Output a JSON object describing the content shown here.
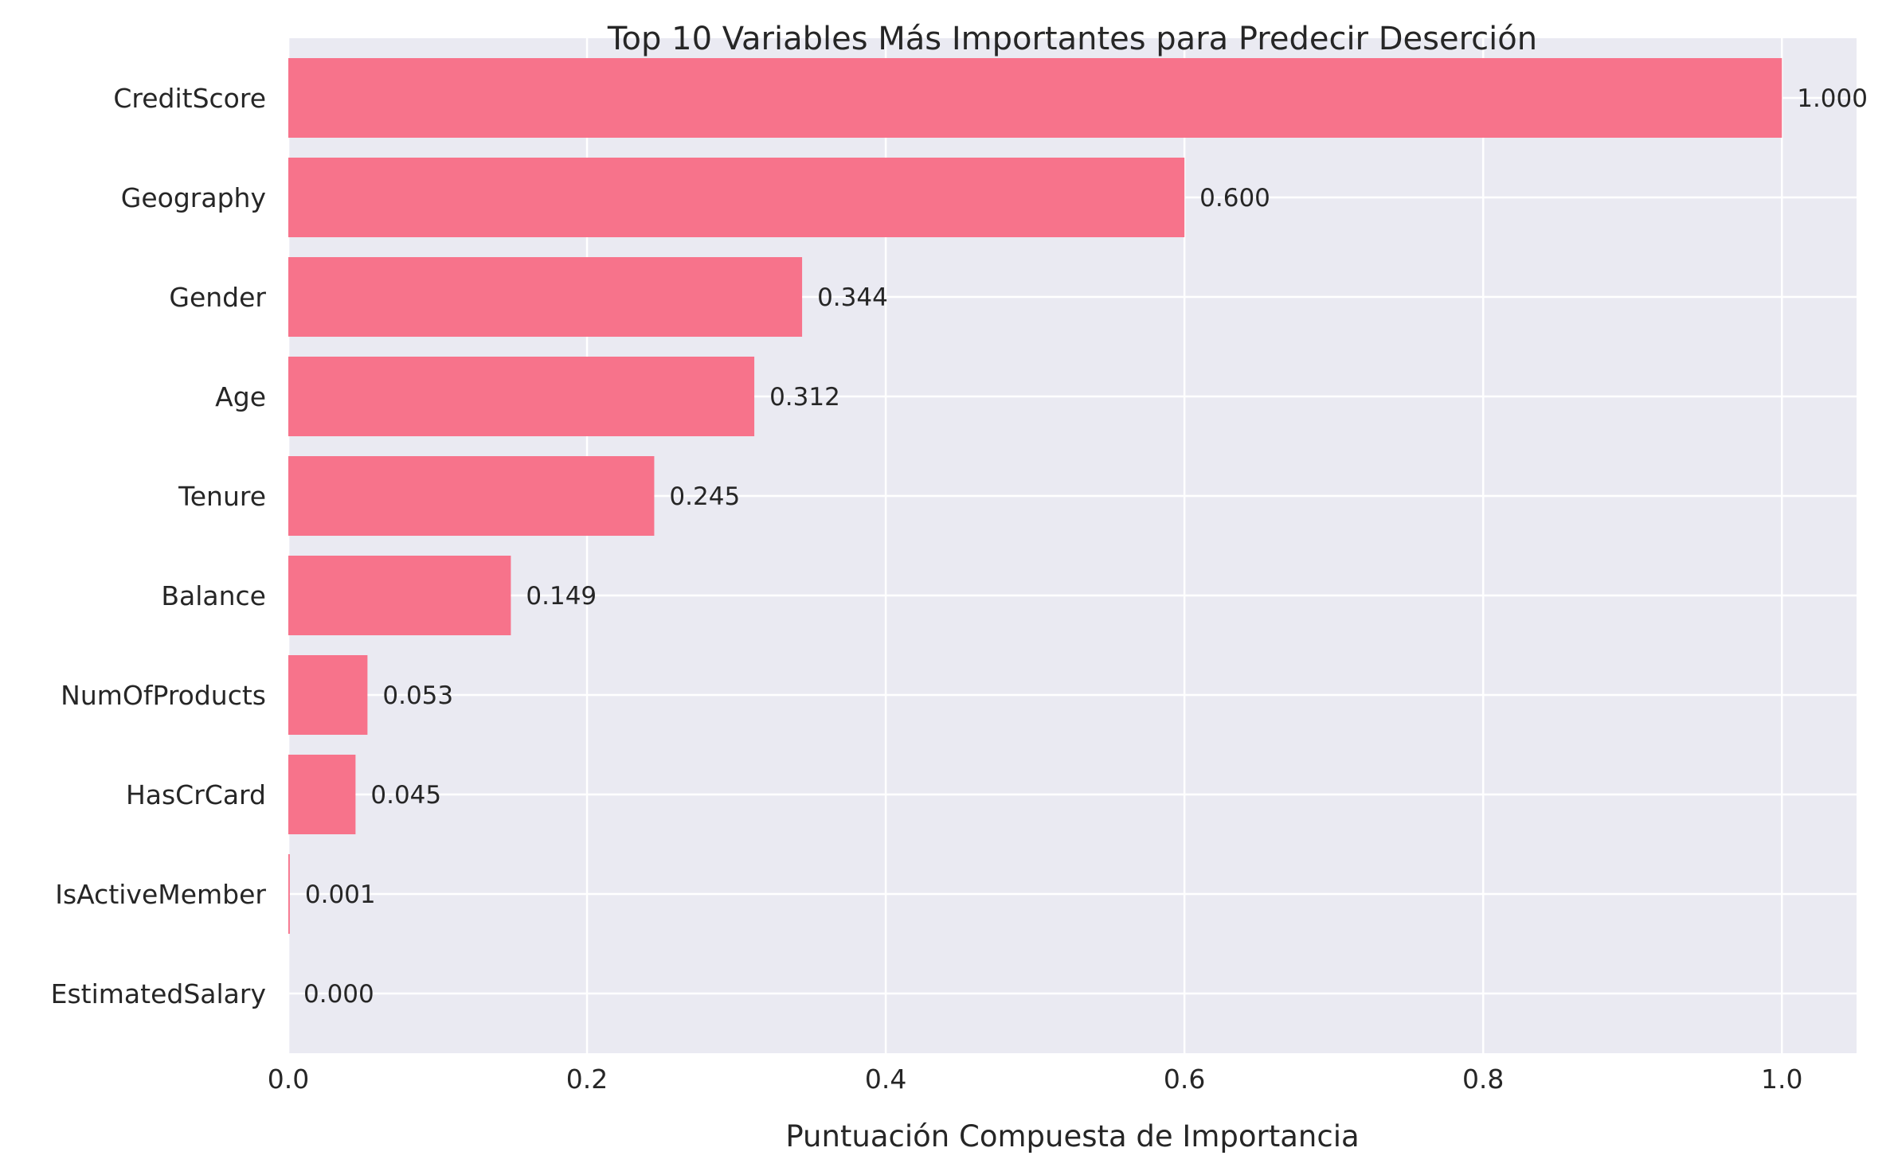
{
  "chart_data": {
    "type": "bar",
    "orientation": "horizontal",
    "title": "Top 10 Variables Más Importantes para Predecir Deserción",
    "xlabel": "Puntuación Compuesta de Importancia",
    "ylabel": "",
    "xlim": [
      0,
      1.05
    ],
    "xticks": [
      0.0,
      0.2,
      0.4,
      0.6,
      0.8,
      1.0
    ],
    "xtick_labels": [
      "0.0",
      "0.2",
      "0.4",
      "0.6",
      "0.8",
      "1.0"
    ],
    "grid": true,
    "categories": [
      "CreditScore",
      "Geography",
      "Gender",
      "Age",
      "Tenure",
      "Balance",
      "NumOfProducts",
      "HasCrCard",
      "IsActiveMember",
      "EstimatedSalary"
    ],
    "values": [
      1.0,
      0.6,
      0.344,
      0.312,
      0.245,
      0.149,
      0.053,
      0.045,
      0.001,
      0.0
    ],
    "value_labels": [
      "1.000",
      "0.600",
      "0.344",
      "0.312",
      "0.245",
      "0.149",
      "0.053",
      "0.045",
      "0.001",
      "0.000"
    ],
    "bar_color": "#f7738b",
    "background_color": "#eaeaf2"
  }
}
